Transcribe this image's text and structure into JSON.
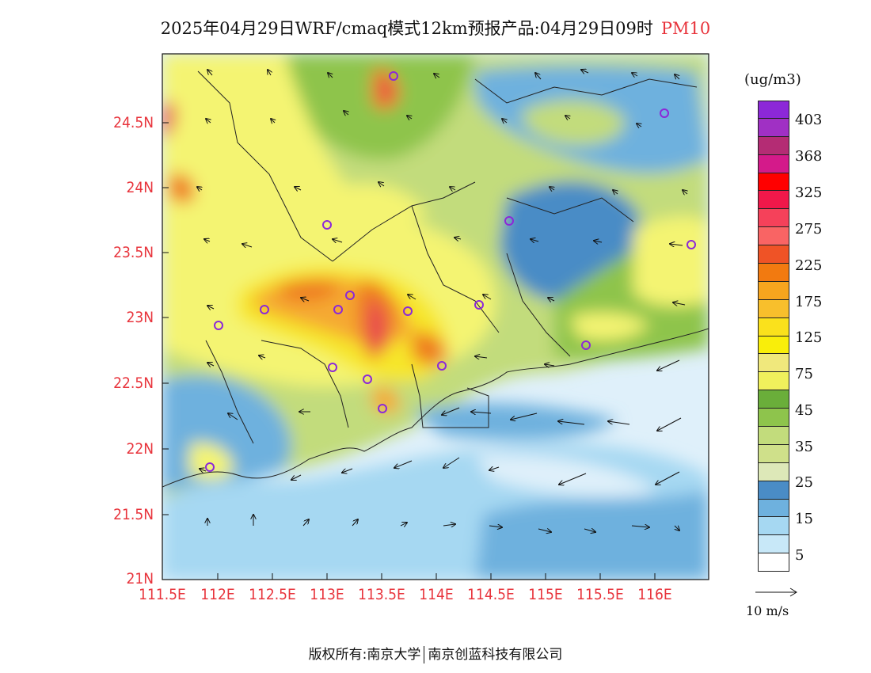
{
  "title": {
    "main": "2025年04月29日WRF/cmaq模式12km预报产品:04月29日09时",
    "pollutant": "PM10"
  },
  "map": {
    "lon_ticks": [
      "111.5E",
      "112E",
      "112.5E",
      "113E",
      "113.5E",
      "114E",
      "114.5E",
      "115E",
      "115.5E",
      "116E"
    ],
    "lat_ticks": [
      "24.5N",
      "24N",
      "23.5N",
      "23N",
      "22.5N",
      "22N",
      "21.5N",
      "21N"
    ],
    "colors": {
      "sea_light": "#dff0fa",
      "sea_blue": "#a6d8f2",
      "mid_blue": "#6eb1de",
      "deep_blue": "#4a8cc6",
      "pale_green": "#dde8b8",
      "light_green": "#c2dc7c",
      "green": "#8ec44c",
      "dark_green": "#6aae3a",
      "yellow": "#f4f472",
      "bright_yellow": "#f7e62c",
      "orange": "#f5a932",
      "dark_orange": "#ef7d22",
      "red": "#e8474f"
    }
  },
  "legend": {
    "unit": "(ug/m3)",
    "labels": [
      "403",
      "368",
      "325",
      "275",
      "225",
      "175",
      "125",
      "75",
      "45",
      "35",
      "25",
      "15",
      "5"
    ],
    "colors": [
      "#8c28d8",
      "#a030c4",
      "#b42c74",
      "#d41a8a",
      "#ff0000",
      "#f0184a",
      "#f5415a",
      "#f96464",
      "#ef5326",
      "#f27a10",
      "#f7a51e",
      "#f8bf2c",
      "#fae11c",
      "#f9ee0a",
      "#f0e87c",
      "#f0f05c",
      "#6aae3a",
      "#8ec44c",
      "#c2dc7c",
      "#cfe08a",
      "#dde8b8",
      "#4a8cc6",
      "#6eb1de",
      "#a6d8f2",
      "#c8e8f8",
      "#ffffff"
    ]
  },
  "wind": {
    "reference_label": "10 m/s"
  },
  "footer": {
    "left": "版权所有:南京大学",
    "right": "南京创蓝科技有限公司"
  }
}
